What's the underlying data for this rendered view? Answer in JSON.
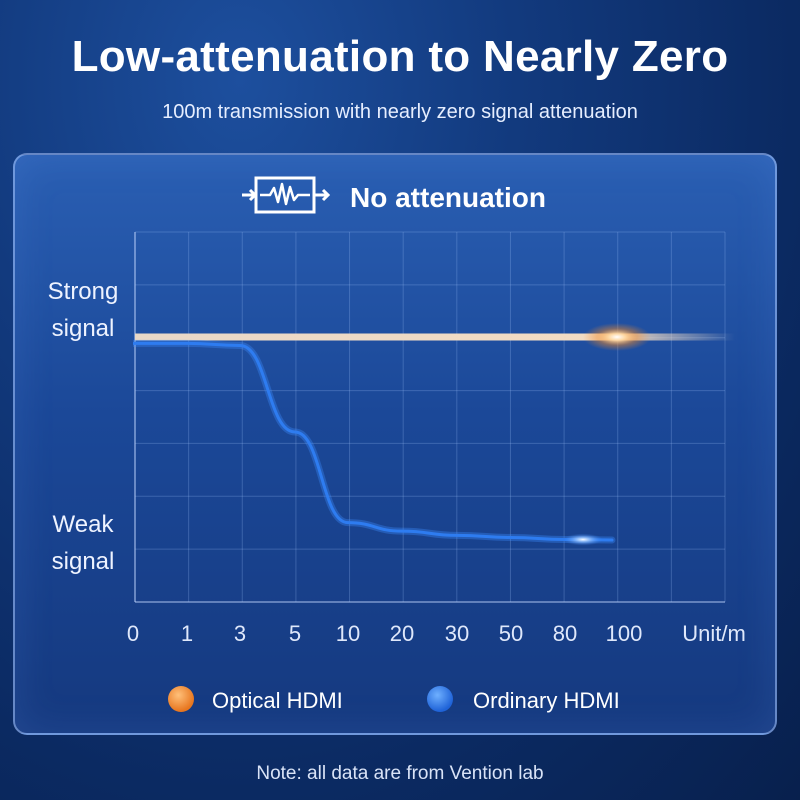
{
  "page": {
    "title": "Low-attenuation to Nearly Zero",
    "subtitle": "100m transmission with nearly zero signal attenuation",
    "note": "Note: all data are from Vention lab"
  },
  "header": {
    "icon": "waveform-icon",
    "text": "No attenuation"
  },
  "chart_data": {
    "type": "line",
    "categories": [
      "0",
      "1",
      "3",
      "5",
      "10",
      "20",
      "30",
      "50",
      "80",
      "100"
    ],
    "xunit": "Unit/m",
    "ylabels": {
      "strong": [
        "Strong",
        "signal"
      ],
      "weak": [
        "Weak",
        "signal"
      ]
    },
    "yrange": [
      0,
      1
    ],
    "grid": true,
    "legend_position": "bottom",
    "series": [
      {
        "name": "Optical HDMI",
        "color": "#f08a2a",
        "values": [
          1.0,
          1.0,
          1.0,
          1.0,
          1.0,
          1.0,
          1.0,
          1.0,
          1.0,
          1.0
        ]
      },
      {
        "name": "Ordinary HDMI",
        "color": "#2e7cf0",
        "values": [
          0.97,
          0.97,
          0.96,
          0.55,
          0.12,
          0.08,
          0.06,
          0.05,
          0.04,
          null
        ]
      }
    ]
  },
  "colors": {
    "optical": "#f08a2a",
    "ordinary": "#2e7cf0",
    "background": "#123a7e"
  }
}
